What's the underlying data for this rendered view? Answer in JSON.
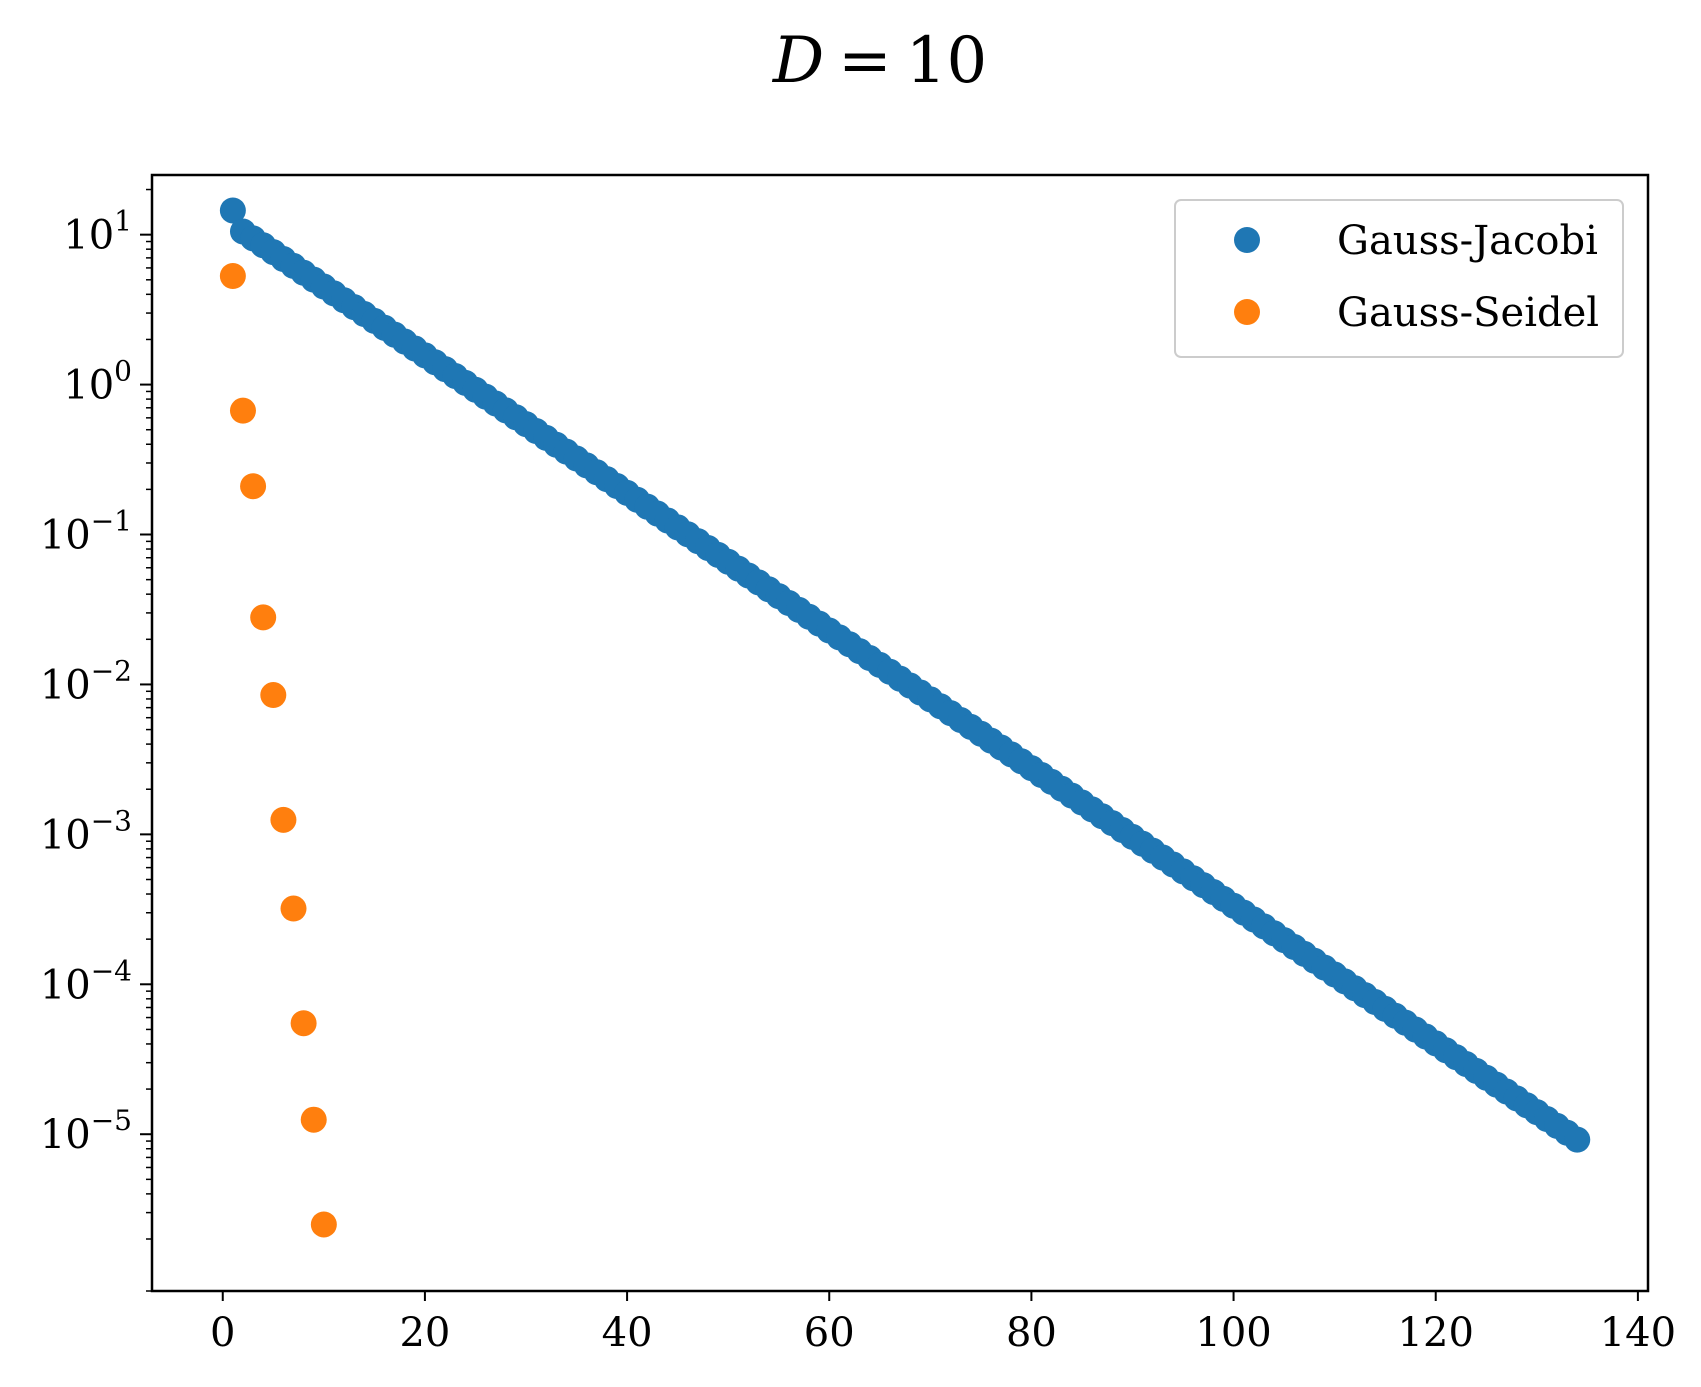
{
  "chart_data": {
    "type": "scatter",
    "title_var": "D",
    "title_op": "=",
    "title_value": "10",
    "xlabel": "",
    "ylabel": "",
    "xlim": [
      -7,
      141
    ],
    "ylim": [
      9e-07,
      25
    ],
    "y_scale": "log",
    "x_ticks": [
      0,
      20,
      40,
      60,
      80,
      100,
      120,
      140
    ],
    "x_tick_labels": [
      "0",
      "20",
      "40",
      "60",
      "80",
      "100",
      "120",
      "140"
    ],
    "y_ticks": [
      10,
      1,
      0.1,
      0.01,
      0.001,
      0.0001,
      1e-05
    ],
    "y_tick_bases": [
      "10",
      "10",
      "10",
      "10",
      "10",
      "10",
      "10"
    ],
    "y_tick_exps": [
      "1",
      "0",
      "−1",
      "−2",
      "−3",
      "−4",
      "−5"
    ],
    "grid": false,
    "legend_position": "top-right",
    "series": [
      {
        "name": "Gauss-Jacobi",
        "color": "#1f77b4",
        "first_point": [
          1,
          14.5
        ],
        "x_start": 2,
        "x_end": 134,
        "y_at_start": 10.5,
        "y_at_end": 9.2e-06
      },
      {
        "name": "Gauss-Seidel",
        "color": "#ff7f0e",
        "x": [
          1,
          2,
          3,
          4,
          5,
          6,
          7,
          8,
          9,
          10
        ],
        "y": [
          5.3,
          0.67,
          0.21,
          0.028,
          0.0085,
          0.00125,
          0.00032,
          5.5e-05,
          1.25e-05,
          2.5e-06
        ]
      }
    ]
  }
}
